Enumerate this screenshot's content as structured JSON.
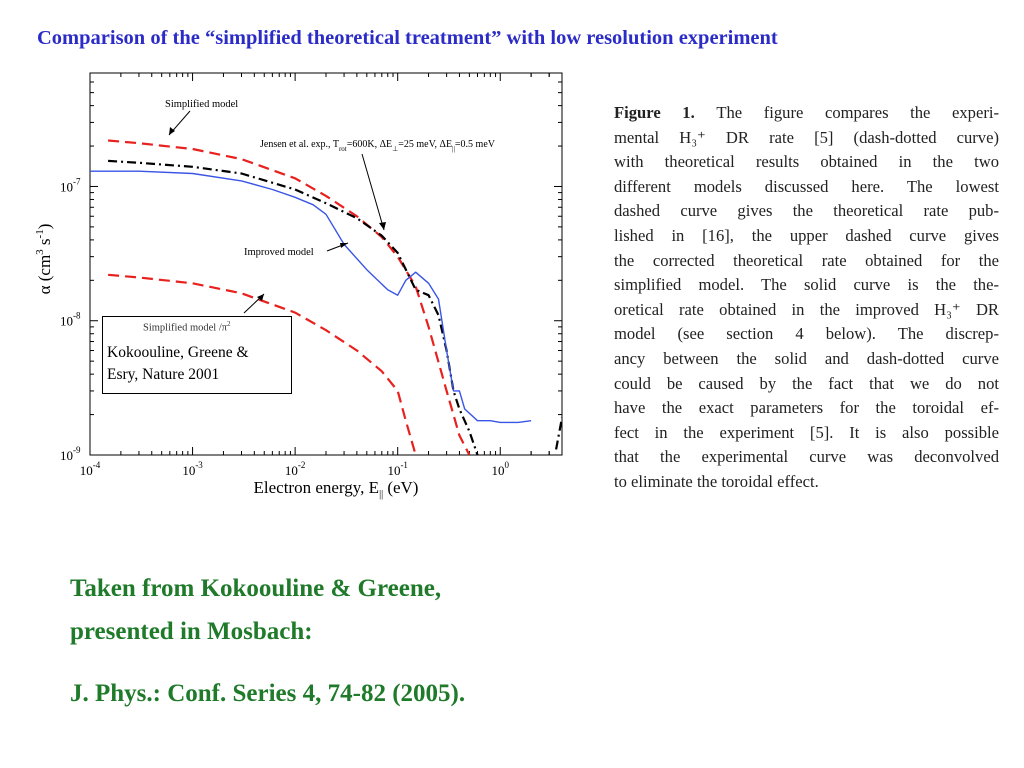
{
  "title": "Comparison of the “simplified theoretical treatment” with low resolution experiment",
  "chart_data": {
    "type": "line",
    "x_scale": "log",
    "y_scale": "log",
    "xlim": [
      0.0001,
      4
    ],
    "ylim": [
      1e-09,
      7e-07
    ],
    "xlabel": "Electron energy, E",
    "xlabel_sub": "||",
    "xlabel_unit": " (eV)",
    "ylabel": "α (cm",
    "ylabel_sup1": "3",
    "ylabel_mid": " s",
    "ylabel_sup2": "-1",
    "ylabel_end": ")",
    "x_ticks": [
      {
        "value": 0.0001,
        "mant": "10",
        "exp": "-4"
      },
      {
        "value": 0.001,
        "mant": "10",
        "exp": "-3"
      },
      {
        "value": 0.01,
        "mant": "10",
        "exp": "-2"
      },
      {
        "value": 0.1,
        "mant": "10",
        "exp": "-1"
      },
      {
        "value": 1,
        "mant": "10",
        "exp": "0"
      }
    ],
    "y_ticks": [
      {
        "value": 1e-09,
        "mant": "10",
        "exp": "-9"
      },
      {
        "value": 1e-08,
        "mant": "10",
        "exp": "-8"
      },
      {
        "value": 1e-07,
        "mant": "10",
        "exp": "-7"
      }
    ],
    "series": [
      {
        "name": "Simplified model",
        "style": "dashed",
        "color": "#e8201e",
        "x": [
          0.00015,
          0.0003,
          0.001,
          0.003,
          0.01,
          0.02,
          0.04,
          0.07,
          0.1,
          0.15,
          0.2,
          0.3,
          0.4,
          0.5
        ],
        "y": [
          2.2e-07,
          2.1e-07,
          1.9e-07,
          1.6e-07,
          1.15e-07,
          8.5e-08,
          6e-08,
          4.2e-08,
          3e-08,
          1.8e-08,
          9e-09,
          3e-09,
          1.4e-09,
          1e-09
        ]
      },
      {
        "name": "Jensen et al. exp., T_rot=600K, ΔE⊥=25 meV, ΔE||=0.5 meV",
        "style": "dashdot",
        "color": "#000000",
        "x": [
          0.00015,
          0.0003,
          0.001,
          0.003,
          0.01,
          0.02,
          0.04,
          0.07,
          0.1,
          0.15,
          0.2,
          0.25,
          0.3,
          0.35,
          0.4,
          0.5,
          0.6
        ],
        "y": [
          1.55e-07,
          1.5e-07,
          1.4e-07,
          1.25e-07,
          9.5e-08,
          7.5e-08,
          5.8e-08,
          4.3e-08,
          3.2e-08,
          1.7e-08,
          1.55e-08,
          1.1e-08,
          6e-09,
          3e-09,
          2.2e-09,
          1.5e-09,
          1e-09
        ]
      },
      {
        "name": "Improved model",
        "style": "solid",
        "color": "#3a55e6",
        "x": [
          0.0001,
          0.0003,
          0.001,
          0.003,
          0.006,
          0.01,
          0.015,
          0.02,
          0.03,
          0.05,
          0.08,
          0.1,
          0.12,
          0.15,
          0.2,
          0.25,
          0.3,
          0.35,
          0.4,
          0.45,
          0.6,
          0.8,
          1.0,
          1.2,
          1.5,
          2.0
        ],
        "y": [
          1.3e-07,
          1.3e-07,
          1.25e-07,
          1.1e-07,
          9.5e-08,
          8.3e-08,
          7.3e-08,
          6.2e-08,
          3.7e-08,
          2.4e-08,
          1.7e-08,
          1.55e-08,
          2e-08,
          2.3e-08,
          1.9e-08,
          1.45e-08,
          6e-09,
          3e-09,
          3e-09,
          2.2e-09,
          1.8e-09,
          1.8e-09,
          1.75e-09,
          1.75e-09,
          1.75e-09,
          1.8e-09
        ]
      },
      {
        "name": "Simplified model /π²",
        "style": "dashed",
        "color": "#e8201e",
        "x": [
          0.00015,
          0.0003,
          0.001,
          0.003,
          0.01,
          0.02,
          0.04,
          0.07,
          0.1,
          0.12,
          0.15
        ],
        "y": [
          2.2e-08,
          2.1e-08,
          1.9e-08,
          1.6e-08,
          1.15e-08,
          8.5e-09,
          6e-09,
          4.2e-09,
          3e-09,
          1.8e-09,
          1e-09
        ]
      }
    ],
    "tail_segment": {
      "style": "dashdot",
      "color": "#000000",
      "x": [
        3.5,
        4.0
      ],
      "y": [
        1.1e-09,
        1.9e-09
      ]
    },
    "labels": {
      "simplified_model": "Simplified model",
      "jensen": "Jensen et al. exp., T",
      "jensen_rot": "rot",
      "jensen_rest1": "=600K, ΔE",
      "jensen_perp": "⊥",
      "jensen_rest2": "=25 meV, ΔE",
      "jensen_par": "||",
      "jensen_rest3": "=0.5 meV",
      "improved_model": "Improved model",
      "simplified_over_pi2": "Simplified model /π",
      "pi2_exp": "2"
    }
  },
  "citation_box": {
    "line1": "Kokoouline, Greene &",
    "line2": "Esry, Nature 2001"
  },
  "caption": {
    "fig": "Figure 1.",
    "lines": [
      "The figure compares the experi-",
      "mental H₃⁺ DR rate [5] (dash-dotted curve)",
      "with theoretical results obtained in the two",
      "different models discussed here. The lowest",
      "dashed curve gives the theoretical rate pub-",
      "lished in [16], the upper dashed curve gives",
      "the corrected theoretical rate obtained for the",
      "simplified model. The solid curve is the the-",
      "oretical rate obtained in the improved H₃⁺ DR",
      "model (see section 4 below). The discrep-",
      "ancy between the solid and dash-dotted curve",
      "could be caused by the fact that we do not",
      "have the exact parameters for the toroidal ef-",
      "fect in the experiment [5]. It is also possible",
      "that the experimental curve was deconvolved",
      "to eliminate the toroidal effect."
    ]
  },
  "source": {
    "line1": "Taken from Kokoouline & Greene,",
    "line2": "presented in Mosbach:",
    "line3": "J. Phys.: Conf. Series 4, 74-82 (2005)."
  }
}
